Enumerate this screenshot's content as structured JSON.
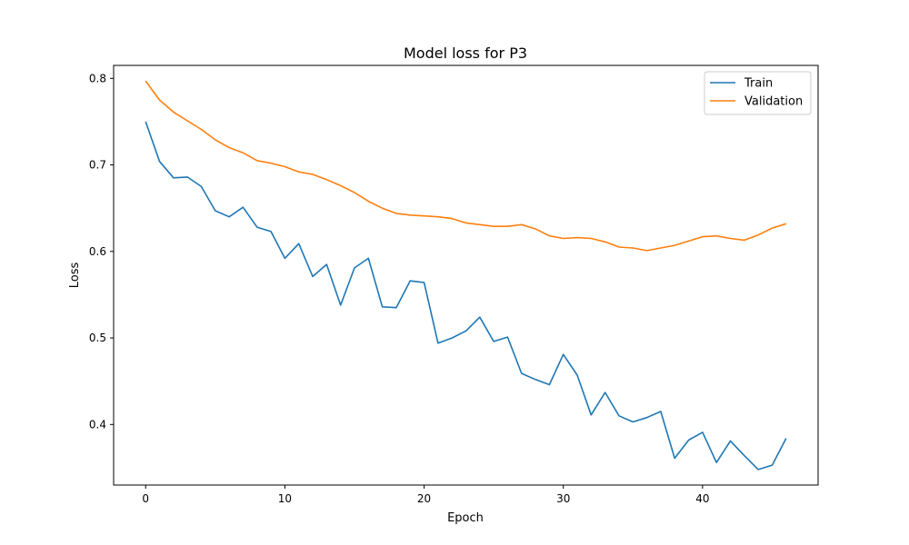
{
  "chart_data": {
    "type": "line",
    "title": "Model loss for P3",
    "xlabel": "Epoch",
    "ylabel": "Loss",
    "xlim": [
      -2.3,
      48.3
    ],
    "ylim": [
      0.33,
      0.815
    ],
    "xticks": [
      0,
      10,
      20,
      30,
      40
    ],
    "yticks": [
      0.4,
      0.5,
      0.6,
      0.7,
      0.8
    ],
    "xtick_labels": [
      "0",
      "10",
      "20",
      "30",
      "40"
    ],
    "ytick_labels": [
      "0.4",
      "0.5",
      "0.6",
      "0.7",
      "0.8"
    ],
    "grid": false,
    "legend_position": "top-right",
    "x": [
      0,
      1,
      2,
      3,
      4,
      5,
      6,
      7,
      8,
      9,
      10,
      11,
      12,
      13,
      14,
      15,
      16,
      17,
      18,
      19,
      20,
      21,
      22,
      23,
      24,
      25,
      26,
      27,
      28,
      29,
      30,
      31,
      32,
      33,
      34,
      35,
      36,
      37,
      38,
      39,
      40,
      41,
      42,
      43,
      44,
      45,
      46
    ],
    "series": [
      {
        "name": "Train",
        "color": "#1f77b4",
        "values": [
          0.75,
          0.704,
          0.685,
          0.686,
          0.675,
          0.647,
          0.64,
          0.651,
          0.628,
          0.623,
          0.592,
          0.609,
          0.571,
          0.585,
          0.538,
          0.581,
          0.592,
          0.536,
          0.535,
          0.566,
          0.564,
          0.494,
          0.5,
          0.508,
          0.524,
          0.496,
          0.501,
          0.459,
          0.452,
          0.446,
          0.481,
          0.457,
          0.411,
          0.437,
          0.41,
          0.403,
          0.408,
          0.415,
          0.361,
          0.382,
          0.391,
          0.356,
          0.381,
          0.364,
          0.348,
          0.353,
          0.384
        ]
      },
      {
        "name": "Validation",
        "color": "#ff7f0e",
        "values": [
          0.797,
          0.775,
          0.761,
          0.751,
          0.741,
          0.729,
          0.72,
          0.714,
          0.705,
          0.702,
          0.698,
          0.692,
          0.689,
          0.683,
          0.676,
          0.668,
          0.658,
          0.65,
          0.644,
          0.642,
          0.641,
          0.64,
          0.638,
          0.633,
          0.631,
          0.629,
          0.629,
          0.631,
          0.626,
          0.618,
          0.615,
          0.616,
          0.615,
          0.611,
          0.605,
          0.604,
          0.601,
          0.604,
          0.607,
          0.612,
          0.617,
          0.618,
          0.615,
          0.613,
          0.619,
          0.627,
          0.632
        ]
      }
    ]
  }
}
